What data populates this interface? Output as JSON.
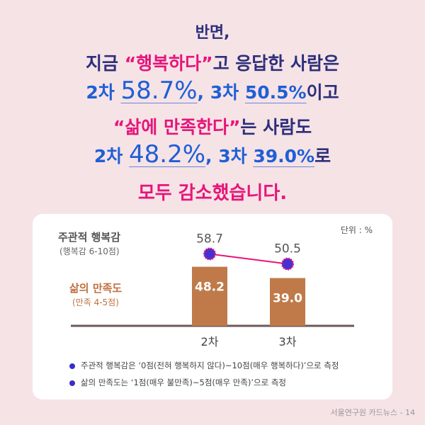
{
  "headline": {
    "l1": "반면,",
    "l2a": "지금 ",
    "l2b": "“행복하다”",
    "l2c": "고 응답한 사람은",
    "l3a": "2차 ",
    "l3b": "58.7%",
    "l3c": ", 3차 ",
    "l3d": "50.5%",
    "l3e": "이고",
    "l4a": "“삶에 만족한다”",
    "l4b": "는 사람도",
    "l5a": "2차 ",
    "l5b": "48.2%",
    "l5c": ", 3차 ",
    "l5d": "39.0%",
    "l5e": "로",
    "l6": "모두 감소했습니다."
  },
  "chart_data": {
    "type": "bar+line",
    "unit_label": "단위 : %",
    "categories": [
      "2차",
      "3차"
    ],
    "series": [
      {
        "name": "삶의 만족도",
        "sub": "(만족 4-5점)",
        "type": "bar",
        "values": [
          48.2,
          39.0
        ],
        "color": "#c07a4a"
      },
      {
        "name": "주관적 행복감",
        "sub": "(행복감 6-10점)",
        "type": "line",
        "values": [
          58.7,
          50.5
        ],
        "color": "#e6157a"
      }
    ],
    "ylim": [
      0,
      70
    ]
  },
  "notes": [
    "주관적 행복감은 ‘0점(전혀 행복하지 않다)~10점(매우 행복하다)’으로 측정",
    "삶의 만족도는 ‘1점(매우 불만족)~5점(매우 만족)’으로 측정"
  ],
  "footer": "서울연구원 카드뉴스 - 14"
}
